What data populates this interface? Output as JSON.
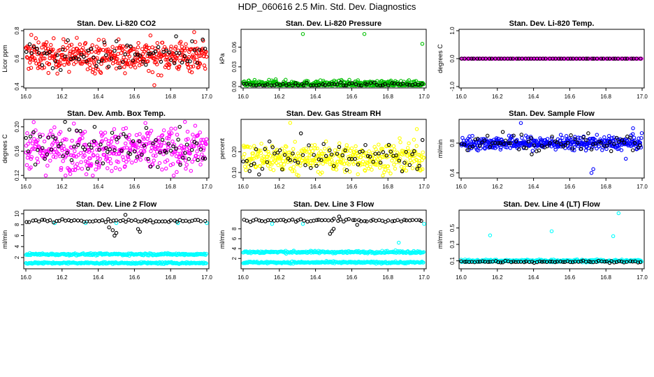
{
  "page": {
    "title": "HDP_060616  2.5 Min. Std. Dev. Diagnostics"
  },
  "chart_data": [
    {
      "type": "scatter",
      "title": "Stan. Dev. Li-820 CO2",
      "xlabel": "",
      "ylabel": "Licor ppm",
      "xlim": [
        16.0,
        17.0
      ],
      "ylim": [
        0.4,
        0.8
      ],
      "xticks": [
        "16.0",
        "16.2",
        "16.4",
        "16.6",
        "16.8",
        "17.0"
      ],
      "yticks": [
        "0.4",
        "0.6",
        "0.8"
      ],
      "series": [
        {
          "name": "primary",
          "color": "#ff0000",
          "n": 420,
          "center": 0.62,
          "spread": 0.055,
          "outliers": [
            [
              16.71,
              0.41
            ],
            [
              16.03,
              0.77
            ],
            [
              16.93,
              0.79
            ]
          ]
        },
        {
          "name": "secondary",
          "color": "#000000",
          "n": 70,
          "center": 0.62,
          "spread": 0.05,
          "outliers": [
            [
              16.83,
              0.76
            ]
          ]
        }
      ]
    },
    {
      "type": "scatter",
      "title": "Stan. Dev. Li-820 Pressure",
      "xlabel": "",
      "ylabel": "kPa",
      "xlim": [
        16.0,
        17.0
      ],
      "ylim": [
        0.0,
        0.085
      ],
      "xticks": [
        "16.0",
        "16.2",
        "16.4",
        "16.6",
        "16.8",
        "17.0"
      ],
      "yticks": [
        "0.00",
        "0.03",
        "0.06"
      ],
      "series": [
        {
          "name": "primary",
          "color": "#00c000",
          "n": 380,
          "center": 0.004,
          "spread": 0.0025,
          "outliers": [
            [
              16.33,
              0.08
            ],
            [
              16.67,
              0.08
            ],
            [
              16.99,
              0.065
            ],
            [
              16.18,
              0.011
            ]
          ]
        },
        {
          "name": "secondary",
          "color": "#000000",
          "n": 60,
          "center": 0.003,
          "spread": 0.002,
          "outliers": []
        }
      ]
    },
    {
      "type": "scatter",
      "title": "Stan. Dev. Li-820 Temp.",
      "xlabel": "",
      "ylabel": "degrees C",
      "xlim": [
        16.0,
        17.0
      ],
      "ylim": [
        -1.0,
        1.0
      ],
      "xticks": [
        "16.0",
        "16.2",
        "16.4",
        "16.6",
        "16.8",
        "17.0"
      ],
      "yticks": [
        "-1.0",
        "0.0",
        "1.0"
      ],
      "series": [
        {
          "name": "primary",
          "color": "#ff00ff",
          "n": 220,
          "center": 0.0,
          "spread": 0.0,
          "outliers": []
        },
        {
          "name": "secondary",
          "color": "#000000",
          "n": 60,
          "center": 0.0,
          "spread": 0.0,
          "outliers": []
        }
      ]
    },
    {
      "type": "scatter",
      "title": "Stan. Dev. Amb. Box Temp.",
      "xlabel": "",
      "ylabel": "degrees C",
      "xlim": [
        16.0,
        17.0
      ],
      "ylim": [
        0.118,
        0.21
      ],
      "xticks": [
        "16.0",
        "16.2",
        "16.4",
        "16.6",
        "16.8",
        "17.0"
      ],
      "yticks": [
        "0.12",
        "0.16",
        "0.20"
      ],
      "series": [
        {
          "name": "primary",
          "color": "#ff00ff",
          "n": 420,
          "center": 0.162,
          "spread": 0.018,
          "outliers": []
        },
        {
          "name": "secondary",
          "color": "#000000",
          "n": 80,
          "center": 0.168,
          "spread": 0.015,
          "outliers": [
            [
              16.38,
              0.2
            ],
            [
              16.85,
              0.2
            ]
          ]
        }
      ]
    },
    {
      "type": "scatter",
      "title": "Stan. Dev. Gas Stream RH",
      "xlabel": "",
      "ylabel": "percent",
      "xlim": [
        16.0,
        17.0
      ],
      "ylim": [
        0.08,
        0.35
      ],
      "xticks": [
        "16.0",
        "16.2",
        "16.4",
        "16.6",
        "16.8",
        "17.0"
      ],
      "yticks": [
        "0.10",
        "0.20"
      ],
      "series": [
        {
          "name": "primary",
          "color": "#ffff00",
          "n": 420,
          "center": 0.17,
          "spread": 0.035,
          "outliers": [
            [
              16.26,
              0.34
            ],
            [
              16.96,
              0.31
            ]
          ]
        },
        {
          "name": "secondary",
          "color": "#000000",
          "n": 70,
          "center": 0.175,
          "spread": 0.04,
          "outliers": []
        }
      ]
    },
    {
      "type": "scatter",
      "title": "Stan. Dev. Sample Flow",
      "xlabel": "",
      "ylabel": "ml/min",
      "xlim": [
        16.0,
        17.0
      ],
      "ylim": [
        0.35,
        1.1
      ],
      "xticks": [
        "16.0",
        "16.2",
        "16.4",
        "16.6",
        "16.8",
        "17.0"
      ],
      "yticks": [
        "0.4",
        "0.8"
      ],
      "series": [
        {
          "name": "primary",
          "color": "#0000ff",
          "n": 420,
          "center": 0.8,
          "spread": 0.045,
          "outliers": [
            [
              16.33,
              1.07
            ],
            [
              16.95,
              1.0
            ],
            [
              16.72,
              0.4
            ],
            [
              16.73,
              0.45
            ],
            [
              16.91,
              0.59
            ]
          ]
        },
        {
          "name": "secondary",
          "color": "#000000",
          "n": 70,
          "center": 0.8,
          "spread": 0.06,
          "outliers": [
            [
              16.23,
              0.95
            ],
            [
              16.39,
              0.65
            ]
          ]
        }
      ]
    },
    {
      "type": "scatter",
      "title": "Stan. Dev. Line 2 Flow",
      "xlabel": "",
      "ylabel": "ml/min",
      "xlim": [
        16.0,
        17.0
      ],
      "ylim": [
        0.2,
        10.4
      ],
      "xticks": [
        "16.0",
        "16.2",
        "16.4",
        "16.6",
        "16.8",
        "17.0"
      ],
      "yticks": [
        "2",
        "4",
        "6",
        "8",
        "10"
      ],
      "series": [
        {
          "name": "band-1",
          "color": "#00ffff",
          "n": 240,
          "center": 2.6,
          "spread": 0.1,
          "outliers": []
        },
        {
          "name": "band-2",
          "color": "#00ffff",
          "n": 240,
          "center": 1.0,
          "spread": 0.08,
          "outliers": [
            [
              16.16,
              8.3
            ],
            [
              16.33,
              8.3
            ],
            [
              16.5,
              8.3
            ],
            [
              16.84,
              8.3
            ],
            [
              17.0,
              8.3
            ]
          ]
        },
        {
          "name": "black",
          "color": "#000000",
          "n": 60,
          "center": 8.7,
          "spread": 0.15,
          "outliers": [
            [
              16.49,
              6.0
            ],
            [
              16.5,
              6.5
            ],
            [
              16.48,
              7.0
            ],
            [
              16.46,
              7.5
            ],
            [
              16.55,
              9.8
            ],
            [
              16.62,
              7.2
            ],
            [
              16.63,
              6.7
            ]
          ]
        }
      ]
    },
    {
      "type": "scatter",
      "title": "Stan. Dev. Line 3 Flow",
      "xlabel": "",
      "ylabel": "ml/min",
      "xlim": [
        16.0,
        17.0
      ],
      "ylim": [
        0.2,
        11.5
      ],
      "xticks": [
        "16.0",
        "16.2",
        "16.4",
        "16.6",
        "16.8",
        "17.0"
      ],
      "yticks": [
        "2",
        "4",
        "6",
        "8"
      ],
      "series": [
        {
          "name": "band-1",
          "color": "#00ffff",
          "n": 240,
          "center": 3.3,
          "spread": 0.12,
          "outliers": []
        },
        {
          "name": "band-2",
          "color": "#00ffff",
          "n": 240,
          "center": 1.2,
          "spread": 0.1,
          "outliers": [
            [
              16.16,
              9.0
            ],
            [
              16.33,
              9.0
            ],
            [
              16.86,
              5.2
            ],
            [
              17.0,
              9.0
            ]
          ]
        },
        {
          "name": "black",
          "color": "#000000",
          "n": 60,
          "center": 9.7,
          "spread": 0.15,
          "outliers": [
            [
              16.48,
              7.0
            ],
            [
              16.49,
              7.5
            ],
            [
              16.5,
              8.0
            ],
            [
              16.53,
              10.5
            ],
            [
              16.63,
              8.8
            ]
          ]
        }
      ]
    },
    {
      "type": "scatter",
      "title": "Stan. Dev. Line 4 (LT) Flow",
      "xlabel": "",
      "ylabel": "ml/min",
      "xlim": [
        16.0,
        17.0
      ],
      "ylim": [
        0.02,
        0.7
      ],
      "xticks": [
        "16.0",
        "16.2",
        "16.4",
        "16.6",
        "16.8",
        "17.0"
      ],
      "yticks": [
        "0.1",
        "0.3",
        "0.5"
      ],
      "series": [
        {
          "name": "primary",
          "color": "#00ffff",
          "n": 300,
          "center": 0.1,
          "spread": 0.008,
          "outliers": [
            [
              16.16,
              0.41
            ],
            [
              16.5,
              0.46
            ],
            [
              16.87,
              0.68
            ],
            [
              16.84,
              0.4
            ]
          ]
        },
        {
          "name": "black",
          "color": "#000000",
          "n": 70,
          "center": 0.09,
          "spread": 0.006,
          "outliers": []
        }
      ]
    }
  ]
}
